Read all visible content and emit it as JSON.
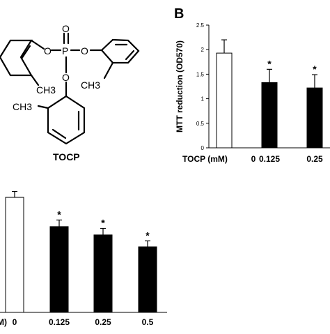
{
  "figure": {
    "panel_b_letter": "B",
    "molecule": {
      "name": "TOCP",
      "atoms": {
        "phosphorus": "P",
        "oxygen": "O",
        "methyl_label": "CH3"
      }
    }
  },
  "chart_data": [
    {
      "type": "bar",
      "panel": "B",
      "ylabel": "MTT reduction (OD570)",
      "xlabel": "TOCP (mM)",
      "ylim": [
        0,
        2.5
      ],
      "yticks": [
        "0",
        "0.5",
        "1",
        "1.5",
        "2",
        "2.5"
      ],
      "categories": [
        "0",
        "0.125",
        "0.25"
      ],
      "values": [
        1.93,
        1.33,
        1.22
      ],
      "errors": [
        0.27,
        0.27,
        0.27
      ],
      "significance": [
        "",
        "*",
        "*"
      ],
      "bar_colors": [
        "#ffffff",
        "#000000",
        "#000000"
      ]
    },
    {
      "type": "bar",
      "panel": "",
      "xlabel": "TOCP (mM)",
      "xlabel_visible": "M)",
      "categories": [
        "0",
        "0.125",
        "0.25",
        "0.5"
      ],
      "values": [
        1.93,
        1.44,
        1.3,
        1.1
      ],
      "errors": [
        0.1,
        0.11,
        0.11,
        0.1
      ],
      "ylim": [
        0,
        2.2
      ],
      "significance": [
        "",
        "*",
        "*",
        "*"
      ],
      "bar_colors": [
        "#ffffff",
        "#000000",
        "#000000",
        "#000000"
      ]
    }
  ]
}
